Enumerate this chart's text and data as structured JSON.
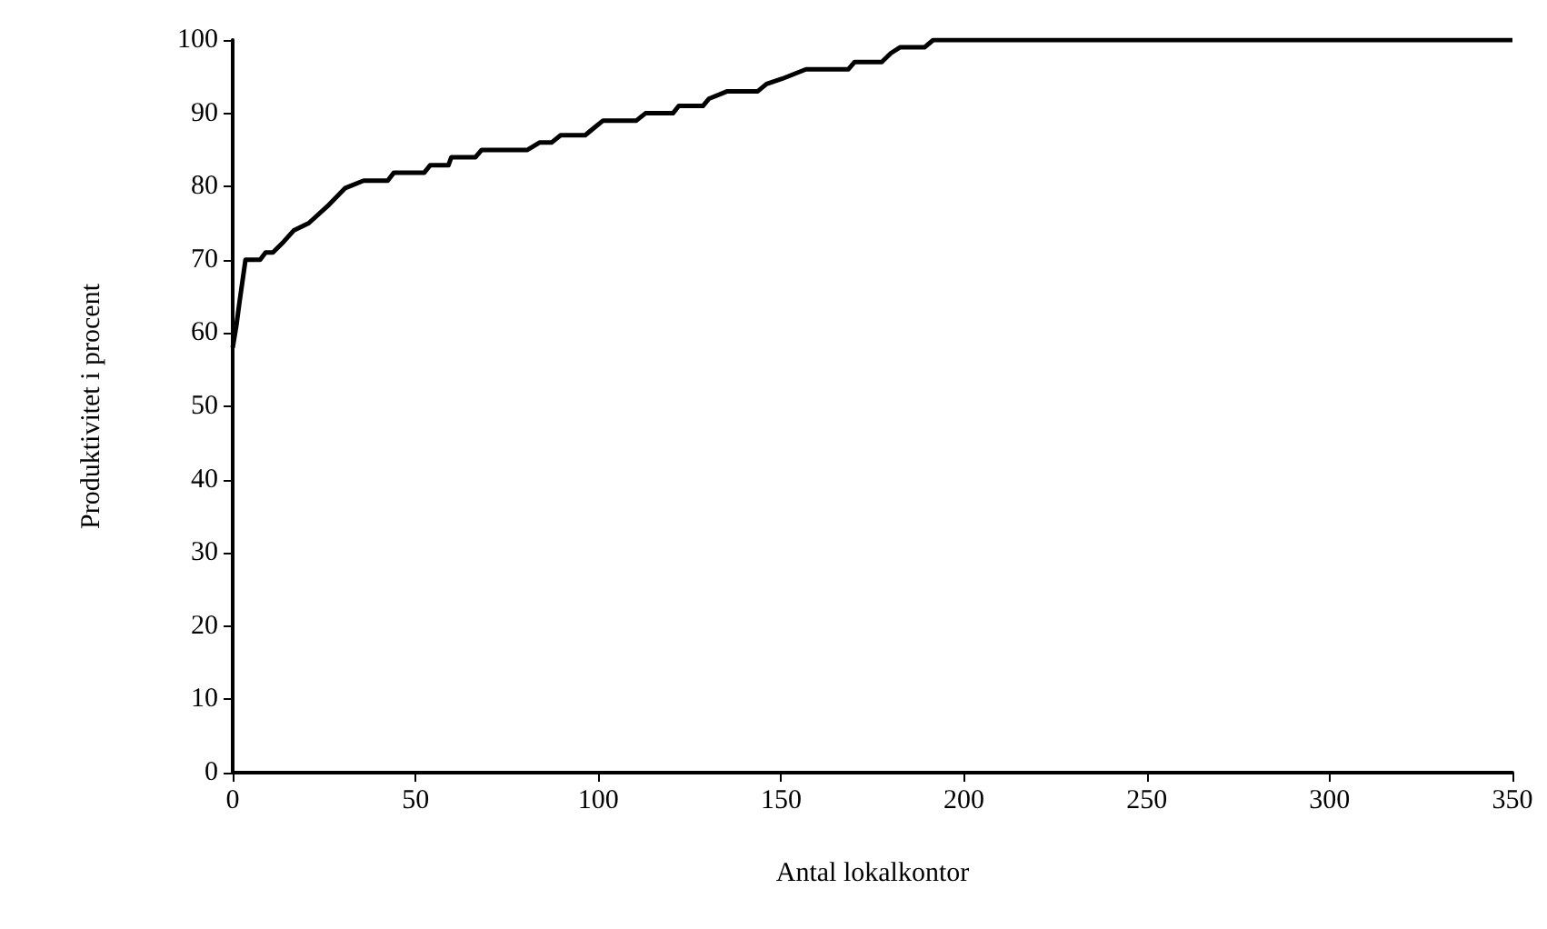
{
  "chart_data": {
    "type": "line",
    "xlabel": "Antal lokalkontor",
    "ylabel": "Produktivitet i procent",
    "x": [
      0,
      1,
      1.8,
      3.5,
      7.5,
      9,
      11,
      14,
      16.7,
      20.8,
      25.9,
      30.8,
      35.8,
      42.4,
      44.1,
      52.4,
      54,
      59,
      59.8,
      66.4,
      68.1,
      80.6,
      83.9,
      87.2,
      89.7,
      96.4,
      98.8,
      101.3,
      110.4,
      112.9,
      120.4,
      122,
      128.6,
      130.3,
      135.3,
      143.6,
      146,
      150.2,
      156.8,
      168.4,
      170.1,
      177.5,
      180,
      182.5,
      189.2,
      191.6,
      350
    ],
    "values": [
      58,
      61,
      64,
      70,
      70,
      71,
      71,
      72.5,
      74,
      75,
      77.3,
      79.8,
      80.8,
      80.8,
      81.9,
      81.9,
      82.9,
      82.9,
      84,
      84,
      85,
      85,
      86,
      86,
      87,
      87,
      88,
      89,
      89,
      90,
      90,
      91,
      91,
      92,
      93,
      93,
      94,
      94.7,
      96,
      96,
      97,
      97,
      98.2,
      99,
      99,
      100,
      100
    ],
    "color": "#000000",
    "xlim": [
      0,
      350
    ],
    "xticks": [
      0,
      50,
      100,
      150,
      200,
      250,
      300,
      350
    ],
    "ylim": [
      0,
      100
    ],
    "yticks": [
      0,
      10,
      20,
      30,
      40,
      50,
      60,
      70,
      80,
      90,
      100
    ],
    "marker": "none",
    "line_style": "solid"
  }
}
